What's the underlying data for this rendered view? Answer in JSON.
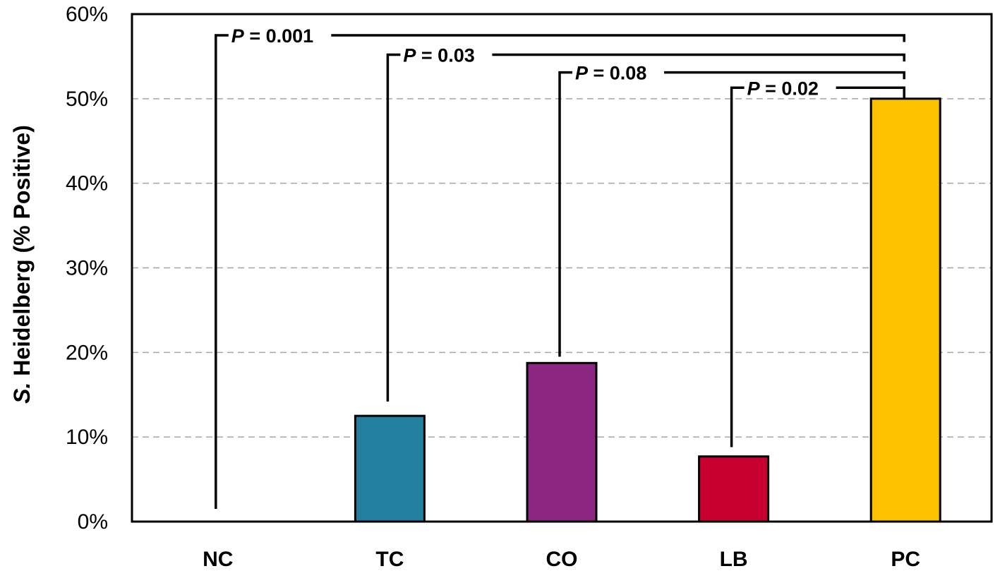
{
  "chart_data": {
    "type": "bar",
    "ylabel_italic": "S.",
    "ylabel_rest": " Heidelberg (% Positive)",
    "xlabel": "",
    "categories": [
      "NC",
      "TC",
      "CO",
      "LB",
      "PC"
    ],
    "values": [
      0,
      12.5,
      18.75,
      7.7,
      50
    ],
    "colors": [
      "#ffffff",
      "#237f9e",
      "#8b2781",
      "#c8002f",
      "#fcc200"
    ],
    "ylim": [
      0,
      60
    ],
    "yticks": [
      0,
      10,
      20,
      30,
      40,
      50,
      60
    ],
    "ytick_suffix": "%",
    "grid": "horizontal dashed",
    "legend": "none",
    "comparisons": [
      {
        "from": "NC",
        "to": "PC",
        "p_symbol": "P",
        "p_text": " = 0.001",
        "level": 57.5
      },
      {
        "from": "TC",
        "to": "PC",
        "p_symbol": "P",
        "p_text": " = 0.03",
        "level": 55.2
      },
      {
        "from": "CO",
        "to": "PC",
        "p_symbol": "P",
        "p_text": " = 0.08",
        "level": 53.1
      },
      {
        "from": "LB",
        "to": "PC",
        "p_symbol": "P",
        "p_text": " = 0.02",
        "level": 51.3
      }
    ]
  }
}
